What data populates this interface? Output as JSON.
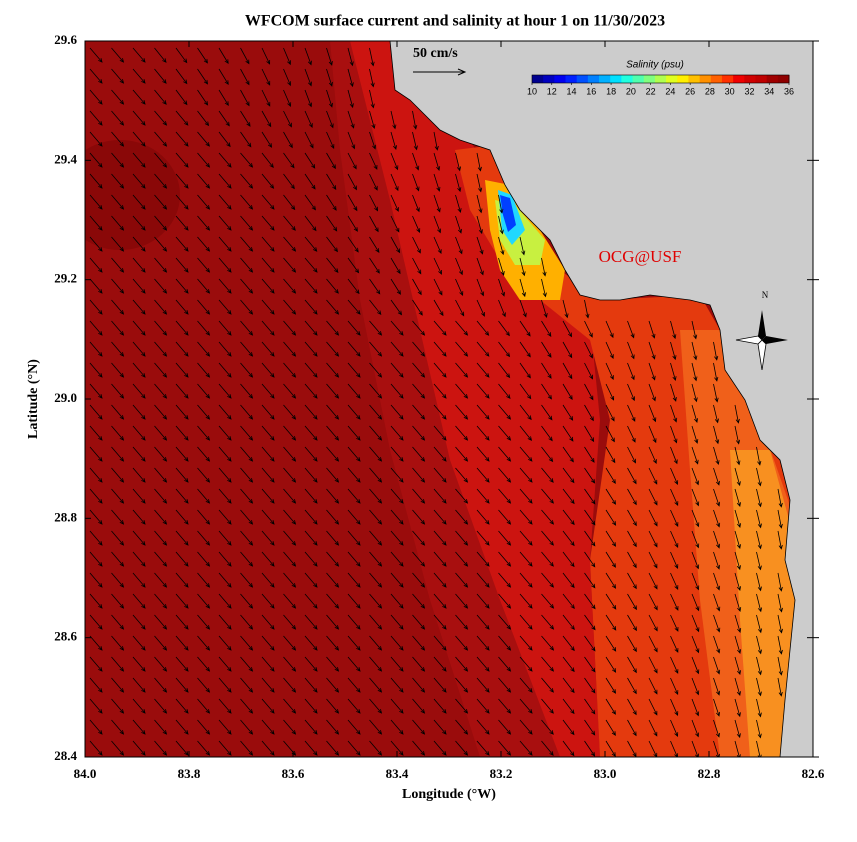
{
  "chart_data": {
    "type": "map",
    "title": "WFCOM surface current and salinity at hour 1 on 11/30/2023",
    "xlabel": "Longitude (°W)",
    "ylabel": "Latitude (°N)",
    "xlim": [
      84.0,
      82.6
    ],
    "xticks": [
      {
        "value": 84.0,
        "label": "84.0"
      },
      83.8,
      83.6,
      83.4,
      83.2,
      {
        "value": 83.0,
        "label": "83.0"
      },
      82.8,
      82.6
    ],
    "ylim": [
      28.4,
      29.6
    ],
    "yticks": [
      28.4,
      28.6,
      28.8,
      {
        "value": 29.0,
        "label": "29.0"
      },
      29.2,
      29.4,
      29.6
    ],
    "scale_label": "50 cm/s",
    "annotation": "OCG@USF",
    "north_label": "N",
    "colorbar": {
      "title": "Salinity (psu)",
      "lim": [
        10,
        36
      ],
      "ticks": [
        10,
        12,
        14,
        16,
        18,
        20,
        22,
        24,
        26,
        28,
        30,
        32,
        34,
        36
      ],
      "colors": [
        "#00008f",
        "#0000bf",
        "#0000ef",
        "#0020ff",
        "#0050ff",
        "#0080ff",
        "#00b0ff",
        "#00e0ff",
        "#20ffdf",
        "#50ffaf",
        "#80ff80",
        "#b0ff50",
        "#e0ff20",
        "#ffef00",
        "#ffc000",
        "#ff9000",
        "#ff6000",
        "#ff3000",
        "#ef0000",
        "#d00000",
        "#bf0000",
        "#a00000",
        "#8f0000"
      ]
    }
  }
}
